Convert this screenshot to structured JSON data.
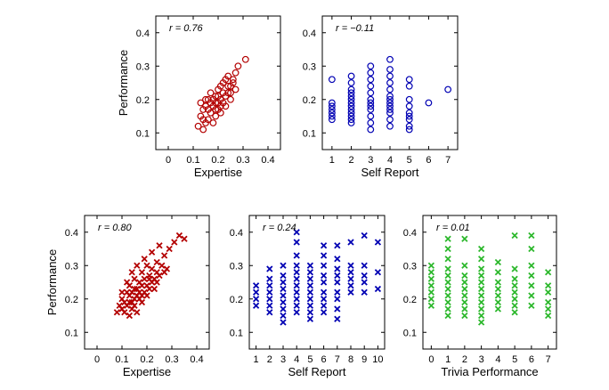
{
  "chart_data": [
    {
      "type": "scatter",
      "marker": "circle",
      "color": "#b30000",
      "xlabel": "Expertise",
      "ylabel": "Performance",
      "annotation": "r = 0.76",
      "xlim": [
        -0.05,
        0.45
      ],
      "ylim": [
        0.05,
        0.45
      ],
      "xticks": [
        0,
        0.1,
        0.2,
        0.3,
        0.4
      ],
      "yticks": [
        0.1,
        0.2,
        0.3,
        0.4
      ],
      "xtick_labels": [
        "0",
        "0.1",
        "0.2",
        "0.3",
        "0.4"
      ],
      "ytick_labels": [
        "0.1",
        "0.2",
        "0.3",
        "0.4"
      ],
      "points": [
        [
          0.12,
          0.12
        ],
        [
          0.13,
          0.15
        ],
        [
          0.14,
          0.11
        ],
        [
          0.14,
          0.17
        ],
        [
          0.15,
          0.13
        ],
        [
          0.15,
          0.18
        ],
        [
          0.16,
          0.14
        ],
        [
          0.16,
          0.2
        ],
        [
          0.17,
          0.16
        ],
        [
          0.17,
          0.22
        ],
        [
          0.18,
          0.18
        ],
        [
          0.18,
          0.13
        ],
        [
          0.19,
          0.21
        ],
        [
          0.19,
          0.17
        ],
        [
          0.2,
          0.19
        ],
        [
          0.2,
          0.23
        ],
        [
          0.21,
          0.2
        ],
        [
          0.21,
          0.16
        ],
        [
          0.22,
          0.22
        ],
        [
          0.22,
          0.25
        ],
        [
          0.23,
          0.21
        ],
        [
          0.23,
          0.18
        ],
        [
          0.24,
          0.24
        ],
        [
          0.24,
          0.27
        ],
        [
          0.25,
          0.22
        ],
        [
          0.25,
          0.2
        ],
        [
          0.26,
          0.25
        ],
        [
          0.27,
          0.28
        ],
        [
          0.27,
          0.23
        ],
        [
          0.28,
          0.3
        ],
        [
          0.31,
          0.32
        ],
        [
          0.13,
          0.19
        ],
        [
          0.15,
          0.2
        ],
        [
          0.17,
          0.19
        ],
        [
          0.19,
          0.15
        ],
        [
          0.2,
          0.17
        ],
        [
          0.21,
          0.24
        ],
        [
          0.22,
          0.19
        ],
        [
          0.23,
          0.26
        ],
        [
          0.16,
          0.17
        ],
        [
          0.18,
          0.2
        ],
        [
          0.2,
          0.21
        ],
        [
          0.24,
          0.22
        ],
        [
          0.26,
          0.26
        ],
        [
          0.14,
          0.14
        ],
        [
          0.19,
          0.19
        ],
        [
          0.21,
          0.18
        ],
        [
          0.25,
          0.24
        ]
      ]
    },
    {
      "type": "scatter",
      "marker": "circle",
      "color": "#0000b3",
      "xlabel": "Self Report",
      "ylabel": "",
      "annotation": "r = −0.11",
      "xlim": [
        0.5,
        7.5
      ],
      "ylim": [
        0.05,
        0.45
      ],
      "xticks": [
        1,
        2,
        3,
        4,
        5,
        6,
        7
      ],
      "yticks": [
        0.1,
        0.2,
        0.3,
        0.4
      ],
      "xtick_labels": [
        "1",
        "2",
        "3",
        "4",
        "5",
        "6",
        "7"
      ],
      "ytick_labels": [
        "0.1",
        "0.2",
        "0.3",
        "0.4"
      ],
      "points": [
        [
          1,
          0.26
        ],
        [
          1,
          0.19
        ],
        [
          1,
          0.18
        ],
        [
          1,
          0.17
        ],
        [
          1,
          0.16
        ],
        [
          1,
          0.15
        ],
        [
          1,
          0.14
        ],
        [
          2,
          0.27
        ],
        [
          2,
          0.25
        ],
        [
          2,
          0.23
        ],
        [
          2,
          0.22
        ],
        [
          2,
          0.21
        ],
        [
          2,
          0.2
        ],
        [
          2,
          0.19
        ],
        [
          2,
          0.18
        ],
        [
          2,
          0.17
        ],
        [
          2,
          0.16
        ],
        [
          2,
          0.15
        ],
        [
          2,
          0.14
        ],
        [
          2,
          0.13
        ],
        [
          3,
          0.3
        ],
        [
          3,
          0.28
        ],
        [
          3,
          0.26
        ],
        [
          3,
          0.24
        ],
        [
          3,
          0.22
        ],
        [
          3,
          0.2
        ],
        [
          3,
          0.19
        ],
        [
          3,
          0.18
        ],
        [
          3,
          0.17
        ],
        [
          3,
          0.15
        ],
        [
          3,
          0.13
        ],
        [
          3,
          0.11
        ],
        [
          4,
          0.32
        ],
        [
          4,
          0.29
        ],
        [
          4,
          0.27
        ],
        [
          4,
          0.25
        ],
        [
          4,
          0.23
        ],
        [
          4,
          0.21
        ],
        [
          4,
          0.2
        ],
        [
          4,
          0.19
        ],
        [
          4,
          0.18
        ],
        [
          4,
          0.17
        ],
        [
          4,
          0.16
        ],
        [
          4,
          0.14
        ],
        [
          4,
          0.12
        ],
        [
          5,
          0.26
        ],
        [
          5,
          0.24
        ],
        [
          5,
          0.2
        ],
        [
          5,
          0.18
        ],
        [
          5,
          0.16
        ],
        [
          5,
          0.15
        ],
        [
          5,
          0.14
        ],
        [
          5,
          0.12
        ],
        [
          5,
          0.11
        ],
        [
          6,
          0.19
        ],
        [
          7,
          0.23
        ]
      ]
    },
    {
      "type": "scatter",
      "marker": "x",
      "color": "#b30000",
      "xlabel": "Expertise",
      "ylabel": "Performance",
      "annotation": "r = 0.80",
      "xlim": [
        -0.05,
        0.45
      ],
      "ylim": [
        0.05,
        0.45
      ],
      "xticks": [
        0,
        0.1,
        0.2,
        0.3,
        0.4
      ],
      "yticks": [
        0.1,
        0.2,
        0.3,
        0.4
      ],
      "xtick_labels": [
        "0",
        "0.1",
        "0.2",
        "0.3",
        "0.4"
      ],
      "ytick_labels": [
        "0.1",
        "0.2",
        "0.3",
        "0.4"
      ],
      "points": [
        [
          0.08,
          0.16
        ],
        [
          0.09,
          0.18
        ],
        [
          0.1,
          0.17
        ],
        [
          0.1,
          0.2
        ],
        [
          0.11,
          0.16
        ],
        [
          0.11,
          0.19
        ],
        [
          0.12,
          0.22
        ],
        [
          0.12,
          0.18
        ],
        [
          0.13,
          0.15
        ],
        [
          0.13,
          0.21
        ],
        [
          0.13,
          0.24
        ],
        [
          0.14,
          0.19
        ],
        [
          0.14,
          0.17
        ],
        [
          0.14,
          0.22
        ],
        [
          0.15,
          0.2
        ],
        [
          0.15,
          0.26
        ],
        [
          0.15,
          0.18
        ],
        [
          0.16,
          0.23
        ],
        [
          0.16,
          0.21
        ],
        [
          0.16,
          0.16
        ],
        [
          0.17,
          0.25
        ],
        [
          0.17,
          0.2
        ],
        [
          0.17,
          0.22
        ],
        [
          0.18,
          0.24
        ],
        [
          0.18,
          0.19
        ],
        [
          0.18,
          0.28
        ],
        [
          0.19,
          0.22
        ],
        [
          0.19,
          0.26
        ],
        [
          0.2,
          0.24
        ],
        [
          0.2,
          0.21
        ],
        [
          0.2,
          0.3
        ],
        [
          0.21,
          0.27
        ],
        [
          0.21,
          0.23
        ],
        [
          0.22,
          0.25
        ],
        [
          0.22,
          0.29
        ],
        [
          0.23,
          0.26
        ],
        [
          0.23,
          0.23
        ],
        [
          0.24,
          0.28
        ],
        [
          0.24,
          0.31
        ],
        [
          0.25,
          0.27
        ],
        [
          0.26,
          0.3
        ],
        [
          0.27,
          0.33
        ],
        [
          0.28,
          0.29
        ],
        [
          0.29,
          0.35
        ],
        [
          0.31,
          0.37
        ],
        [
          0.33,
          0.39
        ],
        [
          0.35,
          0.38
        ],
        [
          0.12,
          0.25
        ],
        [
          0.14,
          0.28
        ],
        [
          0.16,
          0.3
        ],
        [
          0.19,
          0.32
        ],
        [
          0.22,
          0.34
        ],
        [
          0.25,
          0.36
        ],
        [
          0.1,
          0.22
        ],
        [
          0.13,
          0.19
        ],
        [
          0.15,
          0.23
        ],
        [
          0.18,
          0.21
        ],
        [
          0.21,
          0.26
        ],
        [
          0.24,
          0.25
        ],
        [
          0.27,
          0.28
        ]
      ]
    },
    {
      "type": "scatter",
      "marker": "x",
      "color": "#0000b3",
      "xlabel": "Self Report",
      "ylabel": "",
      "annotation": "r = 0.24",
      "xlim": [
        0.5,
        10.5
      ],
      "ylim": [
        0.05,
        0.45
      ],
      "xticks": [
        1,
        2,
        3,
        4,
        5,
        6,
        7,
        8,
        9,
        10
      ],
      "yticks": [
        0.1,
        0.2,
        0.3,
        0.4
      ],
      "xtick_labels": [
        "1",
        "2",
        "3",
        "4",
        "5",
        "6",
        "7",
        "8",
        "9",
        "10"
      ],
      "ytick_labels": [
        "0.1",
        "0.2",
        "0.3",
        "0.4"
      ],
      "points": [
        [
          1,
          0.24
        ],
        [
          1,
          0.22
        ],
        [
          1,
          0.2
        ],
        [
          1,
          0.18
        ],
        [
          2,
          0.29
        ],
        [
          2,
          0.26
        ],
        [
          2,
          0.24
        ],
        [
          2,
          0.22
        ],
        [
          2,
          0.2
        ],
        [
          2,
          0.18
        ],
        [
          2,
          0.16
        ],
        [
          3,
          0.3
        ],
        [
          3,
          0.27
        ],
        [
          3,
          0.25
        ],
        [
          3,
          0.23
        ],
        [
          3,
          0.21
        ],
        [
          3,
          0.19
        ],
        [
          3,
          0.17
        ],
        [
          3,
          0.15
        ],
        [
          3,
          0.13
        ],
        [
          4,
          0.4
        ],
        [
          4,
          0.37
        ],
        [
          4,
          0.33
        ],
        [
          4,
          0.3
        ],
        [
          4,
          0.28
        ],
        [
          4,
          0.26
        ],
        [
          4,
          0.24
        ],
        [
          4,
          0.22
        ],
        [
          4,
          0.2
        ],
        [
          4,
          0.18
        ],
        [
          4,
          0.16
        ],
        [
          5,
          0.3
        ],
        [
          5,
          0.28
        ],
        [
          5,
          0.26
        ],
        [
          5,
          0.24
        ],
        [
          5,
          0.22
        ],
        [
          5,
          0.2
        ],
        [
          5,
          0.18
        ],
        [
          5,
          0.16
        ],
        [
          5,
          0.14
        ],
        [
          6,
          0.36
        ],
        [
          6,
          0.33
        ],
        [
          6,
          0.3
        ],
        [
          6,
          0.27
        ],
        [
          6,
          0.25
        ],
        [
          6,
          0.22
        ],
        [
          6,
          0.2
        ],
        [
          6,
          0.18
        ],
        [
          6,
          0.16
        ],
        [
          7,
          0.36
        ],
        [
          7,
          0.32
        ],
        [
          7,
          0.29
        ],
        [
          7,
          0.27
        ],
        [
          7,
          0.25
        ],
        [
          7,
          0.22
        ],
        [
          7,
          0.2
        ],
        [
          7,
          0.17
        ],
        [
          7,
          0.14
        ],
        [
          8,
          0.37
        ],
        [
          8,
          0.3
        ],
        [
          8,
          0.28
        ],
        [
          8,
          0.26
        ],
        [
          8,
          0.24
        ],
        [
          8,
          0.22
        ],
        [
          9,
          0.39
        ],
        [
          9,
          0.3
        ],
        [
          9,
          0.27
        ],
        [
          9,
          0.25
        ],
        [
          9,
          0.22
        ],
        [
          10,
          0.37
        ],
        [
          10,
          0.28
        ],
        [
          10,
          0.23
        ]
      ]
    },
    {
      "type": "scatter",
      "marker": "x",
      "color": "#2db82d",
      "xlabel": "Trivia Performance",
      "ylabel": "",
      "annotation": "r = 0.01",
      "xlim": [
        -0.5,
        7.5
      ],
      "ylim": [
        0.05,
        0.45
      ],
      "xticks": [
        0,
        1,
        2,
        3,
        4,
        5,
        6,
        7
      ],
      "yticks": [
        0.1,
        0.2,
        0.3,
        0.4
      ],
      "xtick_labels": [
        "0",
        "1",
        "2",
        "3",
        "4",
        "5",
        "6",
        "7"
      ],
      "ytick_labels": [
        "0.1",
        "0.2",
        "0.3",
        "0.4"
      ],
      "points": [
        [
          0,
          0.3
        ],
        [
          0,
          0.28
        ],
        [
          0,
          0.26
        ],
        [
          0,
          0.24
        ],
        [
          0,
          0.22
        ],
        [
          0,
          0.2
        ],
        [
          0,
          0.18
        ],
        [
          1,
          0.38
        ],
        [
          1,
          0.35
        ],
        [
          1,
          0.32
        ],
        [
          1,
          0.29
        ],
        [
          1,
          0.27
        ],
        [
          1,
          0.25
        ],
        [
          1,
          0.23
        ],
        [
          1,
          0.21
        ],
        [
          1,
          0.19
        ],
        [
          1,
          0.17
        ],
        [
          1,
          0.15
        ],
        [
          2,
          0.38
        ],
        [
          2,
          0.3
        ],
        [
          2,
          0.27
        ],
        [
          2,
          0.25
        ],
        [
          2,
          0.23
        ],
        [
          2,
          0.21
        ],
        [
          2,
          0.19
        ],
        [
          2,
          0.17
        ],
        [
          2,
          0.15
        ],
        [
          3,
          0.35
        ],
        [
          3,
          0.32
        ],
        [
          3,
          0.29
        ],
        [
          3,
          0.27
        ],
        [
          3,
          0.25
        ],
        [
          3,
          0.23
        ],
        [
          3,
          0.21
        ],
        [
          3,
          0.19
        ],
        [
          3,
          0.17
        ],
        [
          3,
          0.15
        ],
        [
          3,
          0.13
        ],
        [
          4,
          0.31
        ],
        [
          4,
          0.28
        ],
        [
          4,
          0.25
        ],
        [
          4,
          0.23
        ],
        [
          4,
          0.21
        ],
        [
          4,
          0.19
        ],
        [
          4,
          0.17
        ],
        [
          5,
          0.39
        ],
        [
          5,
          0.29
        ],
        [
          5,
          0.26
        ],
        [
          5,
          0.24
        ],
        [
          5,
          0.22
        ],
        [
          5,
          0.2
        ],
        [
          5,
          0.18
        ],
        [
          5,
          0.16
        ],
        [
          6,
          0.39
        ],
        [
          6,
          0.35
        ],
        [
          6,
          0.3
        ],
        [
          6,
          0.27
        ],
        [
          6,
          0.24
        ],
        [
          6,
          0.21
        ],
        [
          6,
          0.18
        ],
        [
          7,
          0.28
        ],
        [
          7,
          0.24
        ],
        [
          7,
          0.22
        ],
        [
          7,
          0.19
        ],
        [
          7,
          0.17
        ],
        [
          7,
          0.15
        ]
      ]
    }
  ]
}
